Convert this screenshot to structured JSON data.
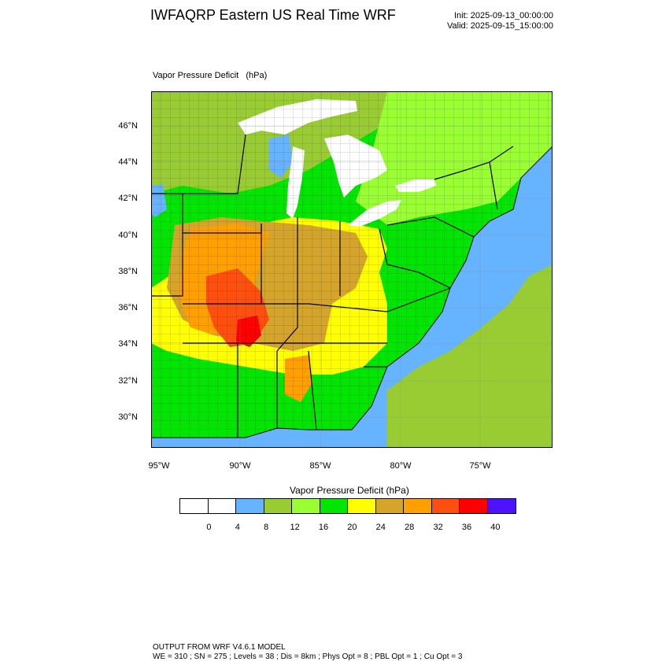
{
  "header": {
    "title": "IWFAQRP Eastern US Real Time WRF",
    "init": "Init: 2025-09-13_00:00:00",
    "valid": "Valid: 2025-09-15_15:00:00"
  },
  "field_title": "Vapor Pressure Deficit   (hPa)",
  "map": {
    "lat_labels": [
      "46°N",
      "44°N",
      "42°N",
      "40°N",
      "38°N",
      "36°N",
      "34°N",
      "32°N",
      "30°N"
    ],
    "lon_labels": [
      "95°W",
      "90°W",
      "85°W",
      "80°W",
      "75°W"
    ],
    "colors": {
      "lake": "#ffffff",
      "ocean": "#66b3ff",
      "band_4_8": "#66b3ff",
      "band_8_12": "#99cc33",
      "band_12_16": "#99ff33",
      "band_16_20": "#00e600",
      "band_20_24": "#ffff00",
      "band_24_28": "#d4a52a",
      "band_28_32": "#ff9f00",
      "band_32_36": "#ff4f0f",
      "band_36_40": "#ff0000"
    }
  },
  "colorbar": {
    "title": "Vapor Pressure Deficit  (hPa)",
    "colors": [
      "#ffffff",
      "#ffffff",
      "#66b3ff",
      "#99cc33",
      "#99ff33",
      "#00e600",
      "#ffff00",
      "#d4a52a",
      "#ff9f00",
      "#ff4f0f",
      "#ff0000",
      "#4d12ff"
    ],
    "ticks": [
      "0",
      "4",
      "8",
      "12",
      "16",
      "20",
      "24",
      "28",
      "32",
      "36",
      "40"
    ]
  },
  "footer": {
    "line1": "OUTPUT FROM WRF V4.6.1 MODEL",
    "line2": "WE = 310 ; SN = 275 ; Levels = 38 ; Dis = 8km ; Phys Opt = 8 ; PBL Opt = 1 ; Cu Opt = 3"
  }
}
